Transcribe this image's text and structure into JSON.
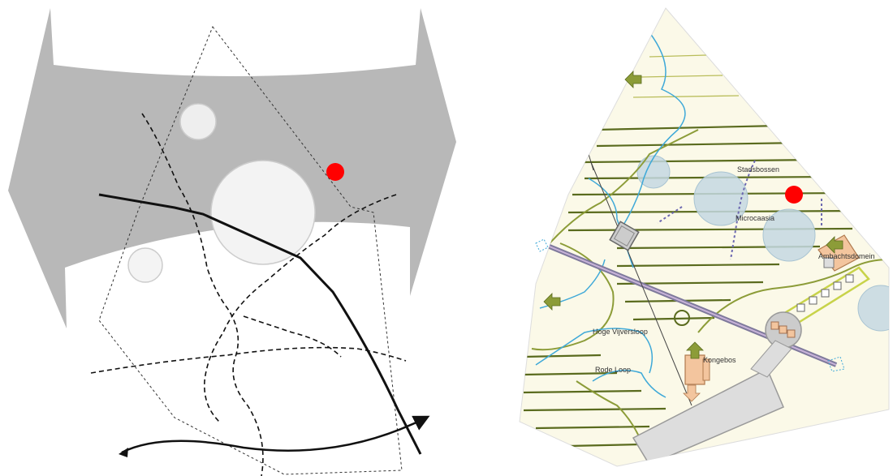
{
  "left_diagram": {
    "band_color": "#b8b8b8",
    "marker_color": "#ff0000"
  },
  "right_map": {
    "labels": {
      "stadsbossen": "Stadsbossen",
      "microcaasia": "Microcaasia",
      "ambachtsdomein": "Ambachtsdomein",
      "hoge_vijversloop": "Hoge Vijversloop",
      "kongebos": "Kongebos",
      "rode_loop": "Rode Loop"
    },
    "colors": {
      "parcel_fill": "#fbf9e8",
      "stripe": "#5a6b1e",
      "water": "#3fa9d8",
      "building": "#f3c59e",
      "arrow": "#8c9c38",
      "grey": "#c9c9c9",
      "pond": "#c4d8e2",
      "marker": "#ff0000"
    }
  }
}
